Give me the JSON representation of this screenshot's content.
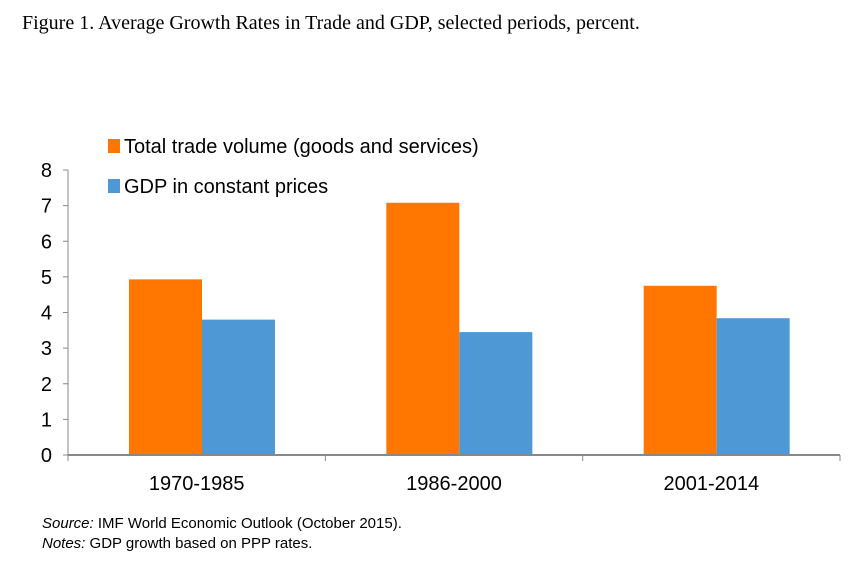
{
  "title": "Figure 1. Average Growth Rates in Trade and GDP, selected periods, percent.",
  "chart_data": {
    "type": "bar",
    "categories": [
      "1970-1985",
      "1986-2000",
      "2001-2014"
    ],
    "series": [
      {
        "name": "Total trade volume (goods and services)",
        "values": [
          4.93,
          7.08,
          4.75
        ],
        "color": "#FF7700"
      },
      {
        "name": "GDP in constant prices",
        "values": [
          3.8,
          3.45,
          3.84
        ],
        "color": "#4F98D6"
      }
    ],
    "ylim": [
      0,
      8
    ],
    "yticks": [
      0,
      1,
      2,
      3,
      4,
      5,
      6,
      7,
      8
    ],
    "grid": false,
    "legend": "top-left",
    "xlabel": "",
    "ylabel": ""
  },
  "notes": {
    "source_label": "Source:",
    "source_text": " IMF World Economic Outlook (October 2015).",
    "notes_label": "Notes:",
    "notes_text": " GDP growth based on PPP rates."
  }
}
